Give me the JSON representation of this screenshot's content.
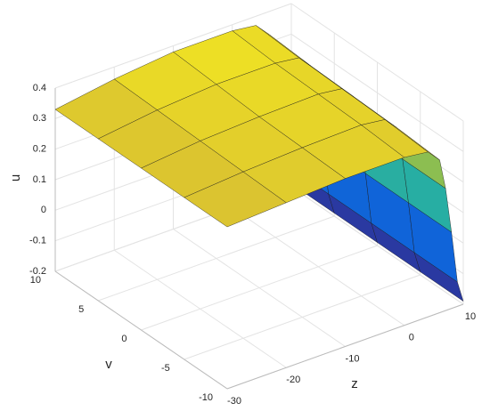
{
  "chart_data": {
    "type": "surface",
    "xlabel": "z",
    "ylabel": "v",
    "zlabel": "u",
    "x": [
      -30,
      -20,
      -10,
      0,
      4,
      6,
      7,
      8,
      9,
      10
    ],
    "y": [
      -10,
      -5,
      0,
      5,
      10
    ],
    "values": [
      [
        0.33,
        0.34,
        0.35,
        0.35,
        0.34,
        0.3,
        0.2,
        0.05,
        -0.12,
        -0.19
      ],
      [
        0.33,
        0.345,
        0.355,
        0.36,
        0.35,
        0.31,
        0.2,
        0.05,
        -0.12,
        -0.19
      ],
      [
        0.33,
        0.35,
        0.36,
        0.365,
        0.355,
        0.315,
        0.21,
        0.05,
        -0.12,
        -0.19
      ],
      [
        0.33,
        0.355,
        0.37,
        0.37,
        0.36,
        0.32,
        0.21,
        0.06,
        -0.12,
        -0.19
      ],
      [
        0.33,
        0.36,
        0.38,
        0.38,
        0.37,
        0.33,
        0.22,
        0.06,
        -0.12,
        -0.19
      ]
    ],
    "xlim": [
      -30,
      10
    ],
    "xticks": [
      -30,
      -20,
      -10,
      0,
      10
    ],
    "ylim": [
      -10,
      10
    ],
    "yticks": [
      -10,
      -5,
      0,
      5,
      10
    ],
    "zlim": [
      -0.2,
      0.4
    ],
    "zticks": [
      -0.2,
      -0.1,
      0,
      0.1,
      0.2,
      0.3,
      0.4
    ],
    "grid": true
  }
}
